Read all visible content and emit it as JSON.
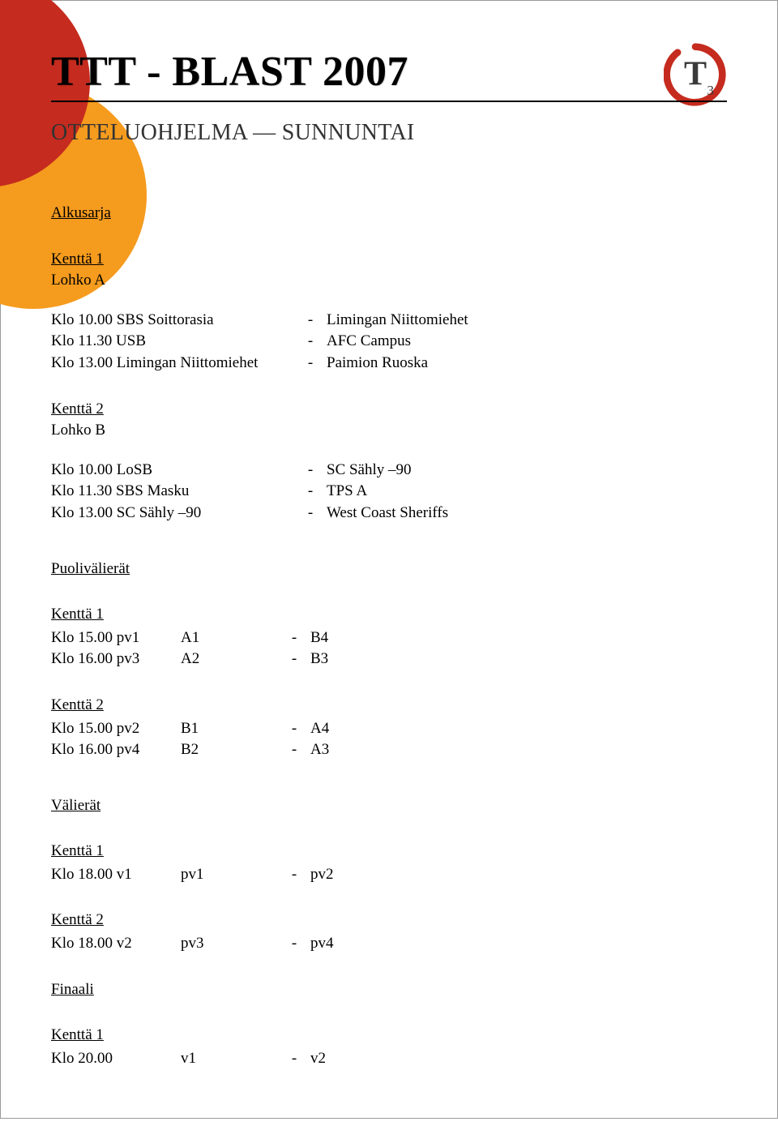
{
  "colors": {
    "circle1": "#c52b1e",
    "circle2": "#f59b1e",
    "logo_ring": "#c52b1e",
    "logo_text": "#3a3a3a"
  },
  "header": {
    "title": "TTT - BLAST 2007",
    "subtitle": "OTTELUOHJELMA — SUNNUNTAI",
    "logo_letter": "T",
    "logo_sub": "3"
  },
  "alkusarja": {
    "label": "Alkusarja",
    "k1": {
      "label": "Kenttä 1",
      "sub": "Lohko A"
    },
    "k1rows": [
      {
        "a": "Klo 10.00  SBS Soittorasia",
        "b": "-",
        "c": "Limingan Niittomiehet"
      },
      {
        "a": "Klo 11.30  USB",
        "b": "-",
        "c": "AFC Campus"
      },
      {
        "a": "Klo 13.00  Limingan Niittomiehet",
        "b": "-",
        "c": "Paimion Ruoska"
      }
    ],
    "k2": {
      "label": "Kenttä 2",
      "sub": "Lohko B"
    },
    "k2rows": [
      {
        "a": "Klo 10.00  LoSB",
        "b": "-",
        "c": "SC Sähly –90"
      },
      {
        "a": "Klo 11.30  SBS Masku",
        "b": "-",
        "c": "TPS A"
      },
      {
        "a": "Klo 13.00  SC Sähly –90",
        "b": "-",
        "c": "West Coast Sheriffs"
      }
    ]
  },
  "puolivalierat": {
    "label": "Puolivälierät",
    "k1": {
      "label": "Kenttä 1"
    },
    "k1rows": [
      {
        "a": "Klo 15.00  pv1",
        "m": "A1",
        "s": "-",
        "n": "B4"
      },
      {
        "a": "Klo 16.00  pv3",
        "m": "A2",
        "s": "-",
        "n": "B3"
      }
    ],
    "k2": {
      "label": "Kenttä 2"
    },
    "k2rows": [
      {
        "a": "Klo 15.00  pv2",
        "m": "B1",
        "s": "-",
        "n": "A4"
      },
      {
        "a": "Klo 16.00  pv4",
        "m": "B2",
        "s": "-",
        "n": "A3"
      }
    ]
  },
  "valierat": {
    "label": "Välierät",
    "k1": {
      "label": "Kenttä 1"
    },
    "k1rows": [
      {
        "a": "Klo 18.00  v1",
        "m": "pv1",
        "s": "-",
        "n": "pv2"
      }
    ],
    "k2": {
      "label": "Kenttä 2"
    },
    "k2rows": [
      {
        "a": "Klo 18.00  v2",
        "m": "pv3",
        "s": "-",
        "n": "pv4"
      }
    ]
  },
  "finaali": {
    "label": "Finaali",
    "k1": {
      "label": "Kenttä 1"
    },
    "rows": [
      {
        "a": "Klo 20.00",
        "m": "v1",
        "s": "-",
        "n": "v2"
      }
    ]
  }
}
